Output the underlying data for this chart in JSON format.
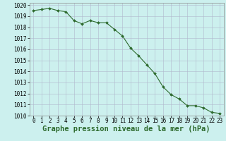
{
  "x": [
    0,
    1,
    2,
    3,
    4,
    5,
    6,
    7,
    8,
    9,
    10,
    11,
    12,
    13,
    14,
    15,
    16,
    17,
    18,
    19,
    20,
    21,
    22,
    23
  ],
  "y": [
    1019.5,
    1019.6,
    1019.7,
    1019.5,
    1019.4,
    1018.6,
    1018.3,
    1018.6,
    1018.4,
    1018.4,
    1017.8,
    1017.2,
    1016.1,
    1015.4,
    1014.6,
    1013.8,
    1012.6,
    1011.9,
    1011.5,
    1010.9,
    1010.9,
    1010.7,
    1010.3,
    1010.2
  ],
  "ylim": [
    1010,
    1020
  ],
  "xlim_min": -0.5,
  "xlim_max": 23.5,
  "yticks": [
    1010,
    1011,
    1012,
    1013,
    1014,
    1015,
    1016,
    1017,
    1018,
    1019,
    1020
  ],
  "xticks": [
    0,
    1,
    2,
    3,
    4,
    5,
    6,
    7,
    8,
    9,
    10,
    11,
    12,
    13,
    14,
    15,
    16,
    17,
    18,
    19,
    20,
    21,
    22,
    23
  ],
  "line_color": "#2d6a2d",
  "marker_color": "#2d6a2d",
  "bg_color": "#ccf0ee",
  "grid_color": "#b0b8cc",
  "xlabel": "Graphe pression niveau de la mer (hPa)",
  "xlabel_color": "#2d6a2d",
  "tick_fontsize": 5.5,
  "label_fontsize": 7.5
}
